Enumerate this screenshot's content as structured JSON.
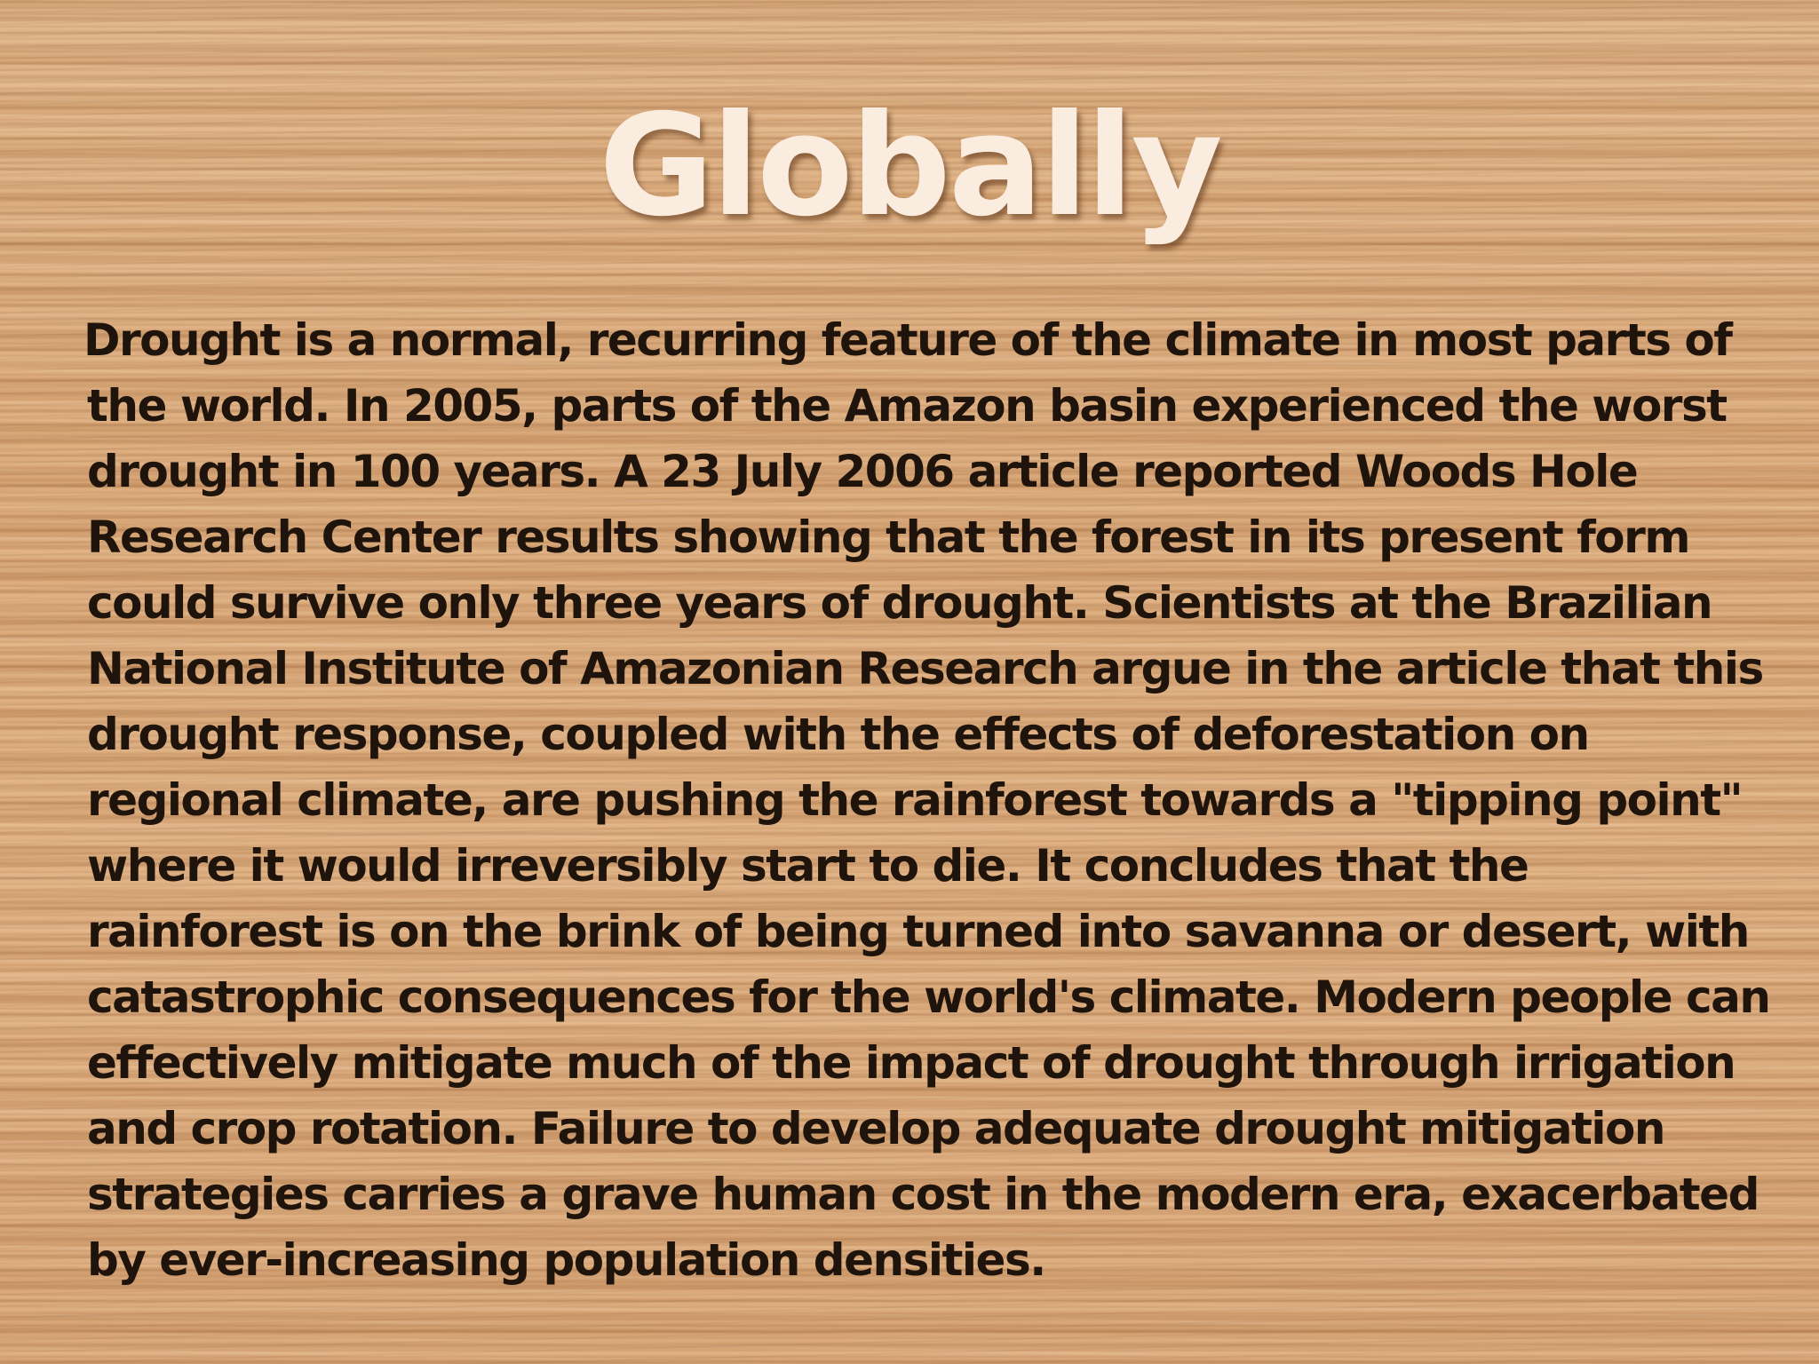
{
  "slide": {
    "title": "Globally",
    "body": "Drought is a normal, recurring feature of the climate in most parts of the world. In 2005, parts of the Amazon basin experienced the worst drought in 100 years. A 23 July 2006 article reported Woods Hole Research Center results showing that the forest in its present form could survive only three years of drought. Scientists at the Brazilian National Institute of Amazonian Research argue in the article that this drought response, coupled with the effects of deforestation on regional climate, are pushing the rainforest towards a \"tipping point\" where it would irreversibly start to die. It concludes that the rainforest is on the brink of being turned into savanna or desert, with catastrophic consequences for the world's climate.  Modern people can effectively mitigate much of the impact of drought through irrigation and crop rotation. Failure to develop adequate drought mitigation strategies carries a grave human cost in the modern era, exacerbated by ever-increasing population densities."
  },
  "colors": {
    "background": "#d9a676",
    "title": "#fbece0",
    "body_text": "#1f140c"
  }
}
